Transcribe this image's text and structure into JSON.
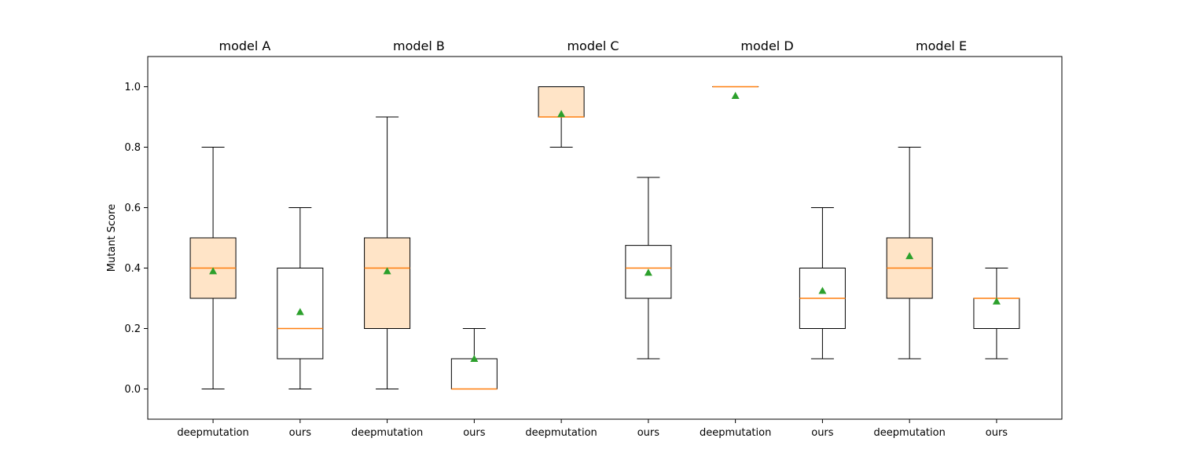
{
  "chart_data": {
    "type": "box",
    "title": "",
    "xlabel": "",
    "ylabel": "Mutant Score",
    "ylim": [
      -0.1,
      1.1
    ],
    "yticks": [
      0.0,
      0.2,
      0.4,
      0.6,
      0.8,
      1.0
    ],
    "ytick_labels": [
      "0.0",
      "0.2",
      "0.4",
      "0.6",
      "0.8",
      "1.0"
    ],
    "colors": {
      "box_fill_deepmutation": "#ffe4c7",
      "box_fill_ours": "#ffffff",
      "median": "#ff7f0e",
      "mean_marker": "#2ca02c",
      "stroke": "#000000"
    },
    "groups": [
      {
        "title": "model A",
        "boxes": [
          {
            "label": "deepmutation",
            "whislo": 0.0,
            "q1": 0.3,
            "median": 0.4,
            "q3": 0.5,
            "whishi": 0.8,
            "mean": 0.39
          },
          {
            "label": "ours",
            "whislo": 0.0,
            "q1": 0.1,
            "median": 0.2,
            "q3": 0.4,
            "whishi": 0.6,
            "mean": 0.255
          }
        ]
      },
      {
        "title": "model B",
        "boxes": [
          {
            "label": "deepmutation",
            "whislo": 0.0,
            "q1": 0.2,
            "median": 0.4,
            "q3": 0.5,
            "whishi": 0.9,
            "mean": 0.39
          },
          {
            "label": "ours",
            "whislo": 0.0,
            "q1": 0.0,
            "median": 0.0,
            "q3": 0.1,
            "whishi": 0.2,
            "mean": 0.1
          }
        ]
      },
      {
        "title": "model C",
        "boxes": [
          {
            "label": "deepmutation",
            "whislo": 0.8,
            "q1": 0.9,
            "median": 0.9,
            "q3": 1.0,
            "whishi": 1.0,
            "mean": 0.91
          },
          {
            "label": "ours",
            "whislo": 0.1,
            "q1": 0.3,
            "median": 0.4,
            "q3": 0.475,
            "whishi": 0.7,
            "mean": 0.385
          }
        ]
      },
      {
        "title": "model D",
        "boxes": [
          {
            "label": "deepmutation",
            "whislo": 1.0,
            "q1": 1.0,
            "median": 1.0,
            "q3": 1.0,
            "whishi": 1.0,
            "mean": 0.97
          },
          {
            "label": "ours",
            "whislo": 0.1,
            "q1": 0.2,
            "median": 0.3,
            "q3": 0.4,
            "whishi": 0.6,
            "mean": 0.325
          }
        ]
      },
      {
        "title": "model E",
        "boxes": [
          {
            "label": "deepmutation",
            "whislo": 0.1,
            "q1": 0.3,
            "median": 0.4,
            "q3": 0.5,
            "whishi": 0.8,
            "mean": 0.44
          },
          {
            "label": "ours",
            "whislo": 0.1,
            "q1": 0.2,
            "median": 0.3,
            "q3": 0.3,
            "whishi": 0.4,
            "mean": 0.29
          }
        ]
      }
    ]
  }
}
